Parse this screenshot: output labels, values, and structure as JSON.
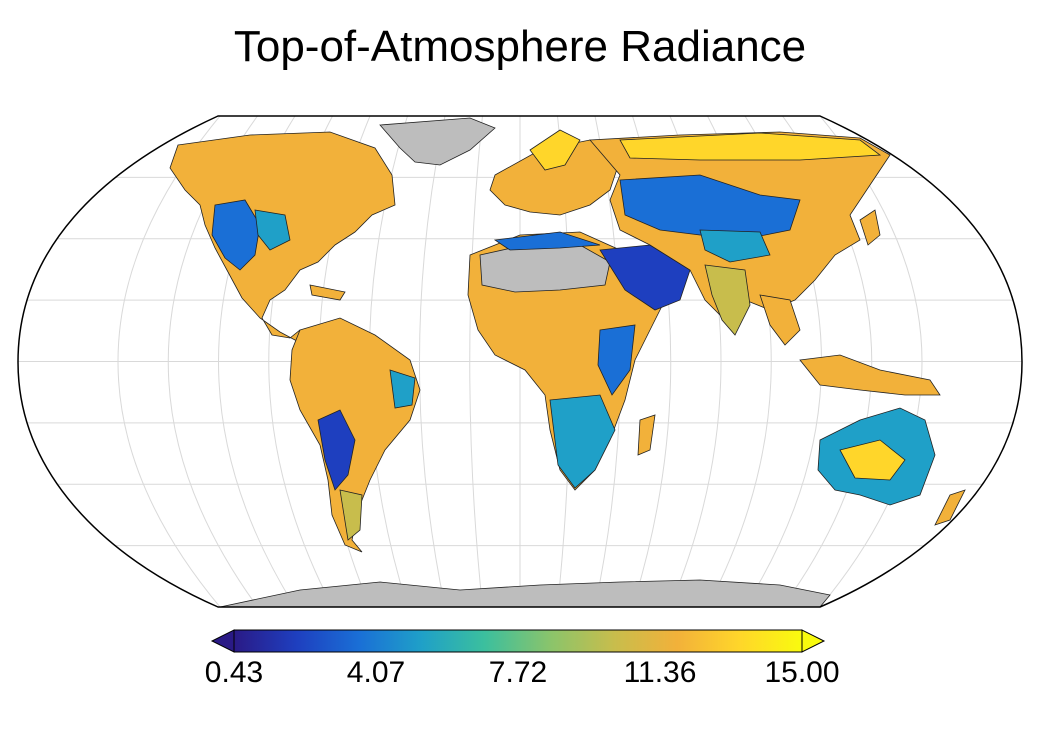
{
  "title": "Top-of-Atmosphere Radiance",
  "colorbar": {
    "min": 0.43,
    "max": 15.0,
    "ticks": [
      "0.43",
      "4.07",
      "7.72",
      "11.36",
      "15.00"
    ],
    "colors": [
      "#2a1a86",
      "#1e3fbf",
      "#1a6fd6",
      "#1fa0c8",
      "#3bbf9e",
      "#8cc46a",
      "#c8bd4c",
      "#f2b13a",
      "#ffd62a",
      "#f9fb0e"
    ],
    "extend": "both"
  },
  "map": {
    "projection": "Robinson",
    "land_no_data_color": "#bdbdbd",
    "ocean_color": "#ffffff",
    "graticule": true
  }
}
